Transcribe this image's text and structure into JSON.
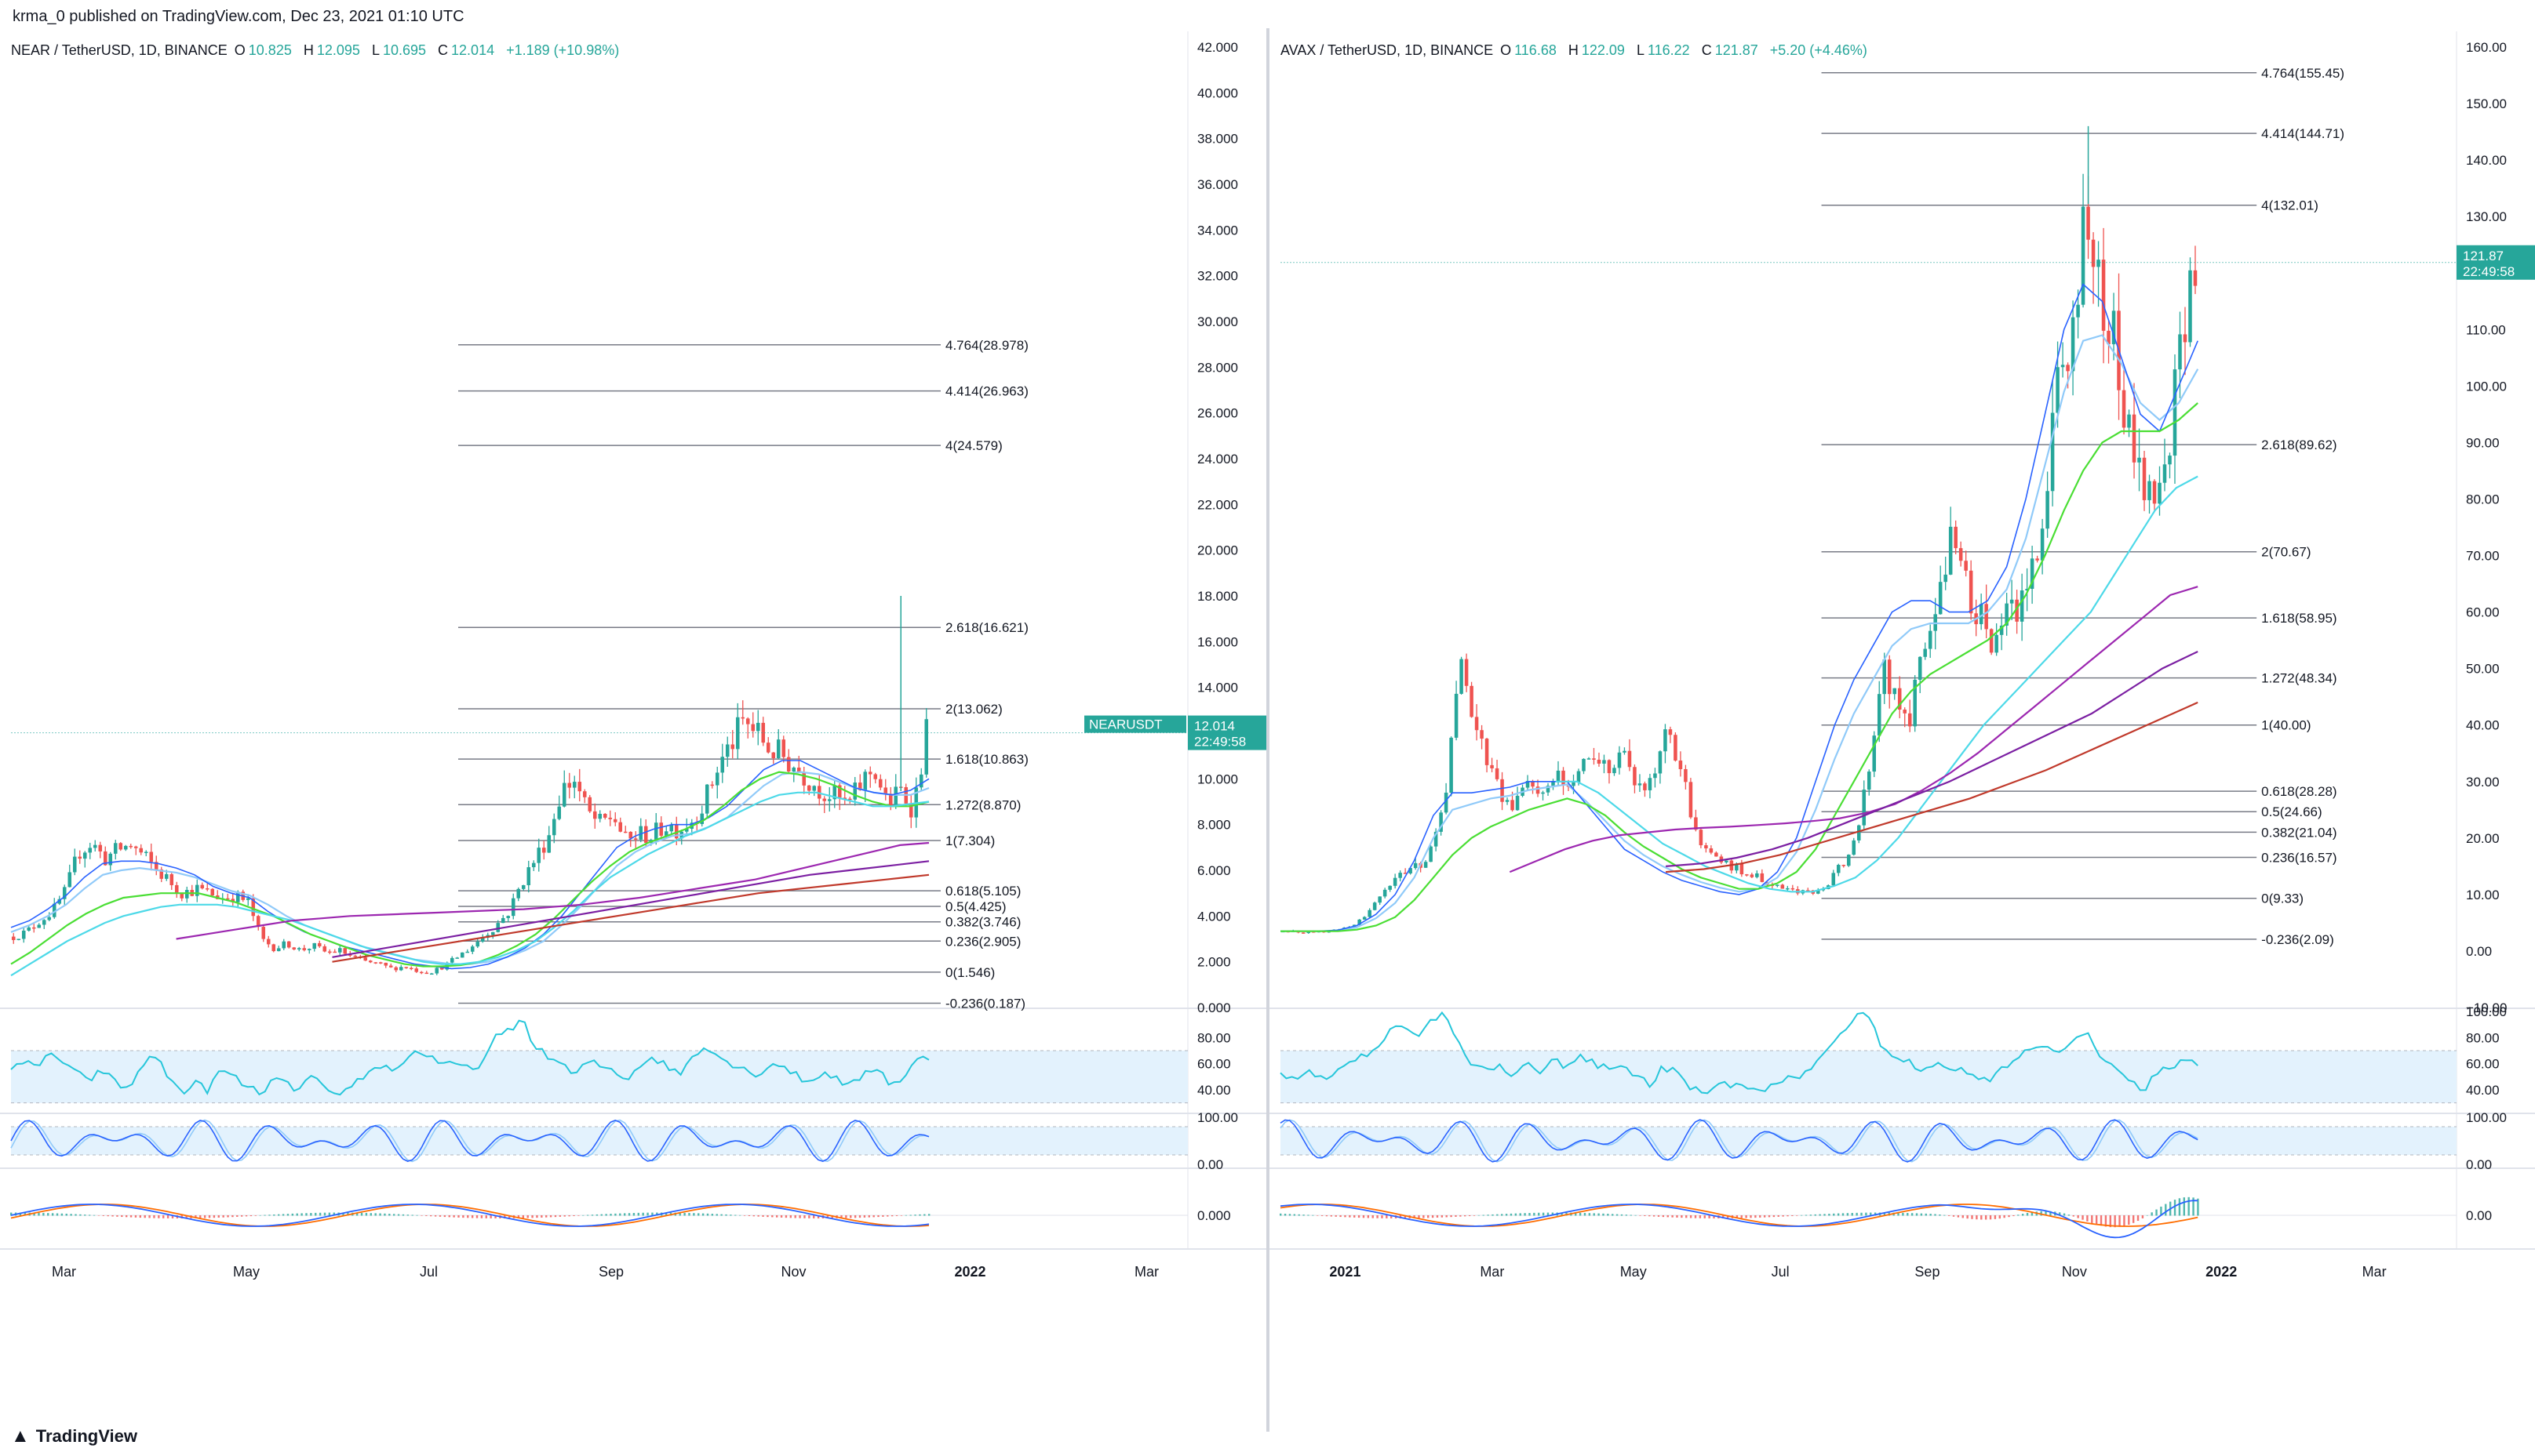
{
  "header": {
    "publisher_text": "krma_0 published on TradingView.com, Dec 23, 2021 01:10 UTC"
  },
  "footer": {
    "brand": "TradingView",
    "logo_icon": "tradingview-logo-icon"
  },
  "colors": {
    "up": "#26a69a",
    "down": "#ef5350",
    "ema_fast": "#2962ff",
    "ema_mid": "#90caf9",
    "sma_green": "#4ade34",
    "sma_cyan": "#4dd9e8",
    "sma_purple": "#9c27b0",
    "sma_violet": "#7b1fa2",
    "sma_red": "#c0392b",
    "fib_line": "#787b86",
    "rsi": "#26c6da",
    "rsi_band": "#e3f2fd",
    "stoch_k": "#2962ff",
    "stoch_d": "#90caf9",
    "macd": "#2962ff",
    "signal": "#ff6d00",
    "hist_up": "#26a69a",
    "hist_down": "#ef5350"
  },
  "chart_data": [
    {
      "type": "candlestick",
      "symbol": "NEAR / TetherUSD, 1D, BINANCE",
      "ohlc": {
        "open_label": "O",
        "open": "10.825",
        "high_label": "H",
        "high": "12.095",
        "low_label": "L",
        "low": "10.695",
        "close_label": "C",
        "close": "12.014",
        "change": "+1.189 (+10.98%)"
      },
      "last_price_tag": {
        "ticker": "NEARUSDT",
        "price": "12.014",
        "countdown": "22:49:58",
        "value": 12.014
      },
      "y_axis": {
        "min": 0,
        "max": 42,
        "ticks": [
          "42.000",
          "40.000",
          "38.000",
          "36.000",
          "34.000",
          "32.000",
          "30.000",
          "28.000",
          "26.000",
          "24.000",
          "22.000",
          "20.000",
          "18.000",
          "16.000",
          "14.000",
          "12.000",
          "10.000",
          "8.000",
          "6.000",
          "4.000",
          "2.000",
          "0.000"
        ],
        "tick_values": [
          42,
          40,
          38,
          36,
          34,
          32,
          30,
          28,
          26,
          24,
          22,
          20,
          18,
          16,
          14,
          12,
          10,
          8,
          6,
          4,
          2,
          0
        ]
      },
      "x_axis": {
        "labels": [
          "Mar",
          "May",
          "Jul",
          "Sep",
          "Nov",
          "2022",
          "Mar"
        ],
        "label_positions": [
          0.045,
          0.2,
          0.355,
          0.51,
          0.665,
          0.815,
          0.965
        ]
      },
      "fib_levels": [
        {
          "label": "4.764(28.978)",
          "value": 28.978
        },
        {
          "label": "4.414(26.963)",
          "value": 26.963
        },
        {
          "label": "4(24.579)",
          "value": 24.579
        },
        {
          "label": "2.618(16.621)",
          "value": 16.621
        },
        {
          "label": "2(13.062)",
          "value": 13.062
        },
        {
          "label": "1.618(10.863)",
          "value": 10.863
        },
        {
          "label": "1.272(8.870)",
          "value": 8.87
        },
        {
          "label": "1(7.304)",
          "value": 7.304
        },
        {
          "label": "0.618(5.105)",
          "value": 5.105
        },
        {
          "label": "0.5(4.425)",
          "value": 4.425
        },
        {
          "label": "0.382(3.746)",
          "value": 3.746
        },
        {
          "label": "0.236(2.905)",
          "value": 2.905
        },
        {
          "label": "0(1.546)",
          "value": 1.546
        },
        {
          "label": "-0.236(0.187)",
          "value": 0.187
        }
      ],
      "fib_x_range": [
        0.38,
        0.79
      ],
      "price_path": [
        3.1,
        3.3,
        3.8,
        4.2,
        5.1,
        6.8,
        7.2,
        6.5,
        6.9,
        7.1,
        6.6,
        6.0,
        5.5,
        5.0,
        5.2,
        5.0,
        4.8,
        4.9,
        4.6,
        3.0,
        2.6,
        2.8,
        2.5,
        2.7,
        2.4,
        2.5,
        2.2,
        2.0,
        1.9,
        1.7,
        1.8,
        1.6,
        1.55,
        1.8,
        2.2,
        2.6,
        3.1,
        3.6,
        4.2,
        5.5,
        6.5,
        7.5,
        9.5,
        10.0,
        8.5,
        8.0,
        8.4,
        7.2,
        7.6,
        7.5,
        8.0,
        7.8,
        8.2,
        9.0,
        10.5,
        11.5,
        12.5,
        12.0,
        11.3,
        11.0,
        10.5,
        10.0,
        9.5,
        9.2,
        8.8,
        9.8,
        10.5,
        8.8,
        9.5,
        8.7,
        12.014
      ],
      "spike": {
        "index": 68,
        "high": 18.0
      },
      "ema_fast": [
        3.5,
        3.8,
        4.3,
        4.9,
        5.7,
        6.3,
        6.4,
        6.4,
        6.3,
        6.1,
        5.8,
        5.3,
        5.0,
        4.8,
        4.2,
        3.7,
        3.3,
        3.0,
        2.7,
        2.5,
        2.3,
        2.1,
        1.9,
        1.8,
        1.7,
        1.75,
        1.9,
        2.2,
        2.6,
        3.2,
        4.0,
        5.0,
        6.0,
        7.0,
        7.5,
        7.8,
        8.0,
        8.0,
        8.3,
        8.8,
        9.6,
        10.4,
        10.8,
        10.8,
        10.4,
        10.0,
        9.6,
        9.4,
        9.3,
        9.5,
        10.0
      ],
      "ema_slow": [
        3.3,
        3.6,
        4.0,
        4.5,
        5.2,
        5.8,
        6.0,
        6.1,
        6.0,
        5.9,
        5.7,
        5.4,
        5.1,
        4.9,
        4.5,
        4.0,
        3.6,
        3.3,
        3.0,
        2.7,
        2.5,
        2.3,
        2.1,
        2.0,
        1.9,
        1.9,
        2.0,
        2.2,
        2.5,
        2.9,
        3.6,
        4.4,
        5.3,
        6.2,
        6.8,
        7.2,
        7.5,
        7.6,
        7.9,
        8.3,
        9.0,
        9.7,
        10.2,
        10.3,
        10.2,
        9.9,
        9.6,
        9.4,
        9.3,
        9.3,
        9.6
      ],
      "sma_green": [
        1.9,
        2.4,
        3.0,
        3.6,
        4.1,
        4.5,
        4.8,
        4.9,
        5.0,
        5.0,
        5.0,
        4.8,
        4.6,
        4.3,
        4.0,
        3.6,
        3.2,
        2.9,
        2.6,
        2.3,
        2.1,
        1.9,
        1.8,
        1.8,
        1.85,
        2.0,
        2.3,
        2.7,
        3.2,
        3.9,
        4.7,
        5.5,
        6.2,
        6.8,
        7.2,
        7.5,
        7.8,
        8.2,
        8.8,
        9.5,
        10.0,
        10.3,
        10.2,
        10.0,
        9.7,
        9.3,
        9.0,
        8.8,
        8.8,
        9.0
      ],
      "sma_cyan": [
        1.4,
        1.9,
        2.4,
        2.9,
        3.3,
        3.7,
        4.0,
        4.2,
        4.4,
        4.5,
        4.5,
        4.5,
        4.4,
        4.2,
        4.0,
        3.8,
        3.5,
        3.2,
        2.9,
        2.6,
        2.4,
        2.2,
        2.0,
        1.9,
        1.9,
        2.0,
        2.2,
        2.5,
        2.9,
        3.5,
        4.2,
        5.0,
        5.7,
        6.2,
        6.7,
        7.1,
        7.5,
        7.8,
        8.2,
        8.6,
        9.0,
        9.3,
        9.4,
        9.4,
        9.2,
        9.0,
        8.8,
        8.8,
        8.9,
        9.0
      ],
      "sma_purple": {
        "start": 0.18,
        "values": [
          3.0,
          3.2,
          3.4,
          3.6,
          3.8,
          3.9,
          4.0,
          4.05,
          4.1,
          4.15,
          4.2,
          4.25,
          4.3,
          4.4,
          4.5,
          4.65,
          4.8,
          5.0,
          5.2,
          5.4,
          5.6,
          5.9,
          6.2,
          6.5,
          6.8,
          7.1,
          7.2
        ]
      },
      "sma_violet": {
        "start": 0.35,
        "values": [
          2.2,
          2.5,
          2.8,
          3.1,
          3.4,
          3.7,
          4.0,
          4.3,
          4.6,
          4.9,
          5.2,
          5.5,
          5.8,
          6.0,
          6.2,
          6.4
        ]
      },
      "sma_red": {
        "start": 0.35,
        "values": [
          2.0,
          2.3,
          2.6,
          2.9,
          3.2,
          3.5,
          3.8,
          4.1,
          4.4,
          4.7,
          5.0,
          5.2,
          5.4,
          5.6,
          5.8
        ]
      },
      "rsi": {
        "ticks": [
          "80.00",
          "60.00",
          "40.00"
        ],
        "tick_values": [
          80,
          60,
          40
        ],
        "min": 25,
        "max": 100,
        "band": [
          30,
          70
        ],
        "values": [
          58,
          62,
          55,
          70,
          60,
          52,
          48,
          55,
          45,
          40,
          60,
          66,
          50,
          38,
          45,
          40,
          55,
          50,
          42,
          37,
          48,
          44,
          40,
          52,
          38,
          33,
          45,
          50,
          60,
          55,
          62,
          70,
          66,
          58,
          60,
          55,
          62,
          80,
          85,
          95,
          72,
          65,
          60,
          50,
          62,
          58,
          55,
          48,
          60,
          65,
          58,
          52,
          66,
          75,
          65,
          60,
          55,
          52,
          60,
          58,
          50,
          45,
          55,
          48,
          42,
          52,
          58,
          45,
          48,
          62,
          65
        ]
      },
      "stoch": {
        "ticks": [
          "100.00",
          "0.00"
        ],
        "tick_values": [
          100,
          0
        ],
        "band": [
          20,
          80
        ]
      },
      "macd": {
        "ticks": [
          "0.000"
        ],
        "tick_values": [
          0
        ]
      }
    },
    {
      "type": "candlestick",
      "symbol": "AVAX / TetherUSD, 1D, BINANCE",
      "ohlc": {
        "open_label": "O",
        "open": "116.68",
        "high_label": "H",
        "high": "122.09",
        "low_label": "L",
        "low": "116.22",
        "close_label": "C",
        "close": "121.87",
        "change": "+5.20 (+4.46%)"
      },
      "last_price_tag": {
        "ticker": "",
        "price": "121.87",
        "countdown": "22:49:58",
        "value": 121.87
      },
      "y_axis": {
        "min": -10,
        "max": 160,
        "ticks": [
          "160.00",
          "150.00",
          "140.00",
          "130.00",
          "120.00",
          "110.00",
          "100.00",
          "90.00",
          "80.00",
          "70.00",
          "60.00",
          "50.00",
          "40.00",
          "30.00",
          "20.00",
          "10.00",
          "0.00",
          "−10.00"
        ],
        "tick_values": [
          160,
          150,
          140,
          130,
          120,
          110,
          100,
          90,
          80,
          70,
          60,
          50,
          40,
          30,
          20,
          10,
          0,
          -10
        ]
      },
      "x_axis": {
        "labels": [
          "2021",
          "Mar",
          "May",
          "Jul",
          "Sep",
          "Nov",
          "2022",
          "Mar"
        ],
        "label_positions": [
          0.055,
          0.18,
          0.3,
          0.425,
          0.55,
          0.675,
          0.8,
          0.93
        ]
      },
      "fib_levels": [
        {
          "label": "4.764(155.45)",
          "value": 155.45
        },
        {
          "label": "4.414(144.71)",
          "value": 144.71
        },
        {
          "label": "4(132.01)",
          "value": 132.01
        },
        {
          "label": "2.618(89.62)",
          "value": 89.62
        },
        {
          "label": "2(70.67)",
          "value": 70.67
        },
        {
          "label": "1.618(58.95)",
          "value": 58.95
        },
        {
          "label": "1.272(48.34)",
          "value": 48.34
        },
        {
          "label": "1(40.00)",
          "value": 40.0
        },
        {
          "label": "0.618(28.28)",
          "value": 28.28
        },
        {
          "label": "0.5(24.66)",
          "value": 24.66
        },
        {
          "label": "0.382(21.04)",
          "value": 21.04
        },
        {
          "label": "0.236(16.57)",
          "value": 16.57
        },
        {
          "label": "0(9.33)",
          "value": 9.33
        },
        {
          "label": "-0.236(2.09)",
          "value": 2.09
        }
      ],
      "fib_x_range": [
        0.46,
        0.83
      ],
      "price_path": [
        3.5,
        3.4,
        3.3,
        3.5,
        3.8,
        4.5,
        6.0,
        9.0,
        12.0,
        14.0,
        15.0,
        18.0,
        28.0,
        55.0,
        40.0,
        33.0,
        28.0,
        26.0,
        30.0,
        27.0,
        31.0,
        28.0,
        33.0,
        35.0,
        32.0,
        36.0,
        28.0,
        30.0,
        38.0,
        34.0,
        24.0,
        18.0,
        16.0,
        15.0,
        14.0,
        13.0,
        12.0,
        11.0,
        10.5,
        10.0,
        12.0,
        15.0,
        20.0,
        32.0,
        52.0,
        44.0,
        40.0,
        55.0,
        60.0,
        75.0,
        66.0,
        60.0,
        55.0,
        58.0,
        62.0,
        68.0,
        80.0,
        100.0,
        110.0,
        135.0,
        115.0,
        108.0,
        95.0,
        85.0,
        80.0,
        90.0,
        110.0,
        121.87
      ],
      "spike": {
        "index": 59,
        "high": 146.0
      },
      "ema_fast": [
        3.5,
        3.5,
        3.5,
        3.7,
        4.5,
        6.5,
        10.0,
        16.0,
        24.0,
        28.0,
        28.0,
        28.5,
        29.0,
        30.0,
        30.0,
        30.0,
        26.0,
        22.0,
        18.0,
        16.0,
        14.0,
        12.5,
        11.5,
        10.5,
        10.0,
        11.0,
        14.0,
        20.0,
        30.0,
        40.0,
        48.0,
        54.0,
        60.0,
        62.0,
        62.0,
        60.0,
        60.0,
        62.0,
        68.0,
        80.0,
        95.0,
        110.0,
        118.0,
        115.0,
        105.0,
        95.0,
        92.0,
        100.0,
        108.0
      ],
      "ema_slow": [
        3.5,
        3.5,
        3.5,
        3.6,
        4.2,
        5.8,
        8.5,
        13.0,
        20.0,
        25.0,
        26.0,
        27.0,
        27.5,
        28.5,
        29.0,
        29.5,
        26.5,
        23.0,
        19.5,
        17.0,
        15.0,
        13.5,
        12.2,
        11.2,
        10.5,
        11.0,
        13.0,
        17.5,
        25.0,
        34.0,
        42.0,
        48.0,
        54.0,
        57.0,
        58.0,
        58.0,
        58.0,
        60.0,
        64.0,
        73.0,
        86.0,
        99.0,
        108.0,
        109.0,
        104.0,
        97.0,
        94.0,
        97.0,
        103.0
      ],
      "sma_green": [
        3.5,
        3.5,
        3.5,
        3.5,
        3.8,
        4.5,
        6.0,
        9.0,
        13.0,
        17.0,
        20.0,
        22.0,
        23.5,
        25.0,
        26.0,
        27.0,
        26.0,
        24.0,
        21.0,
        18.5,
        16.5,
        14.5,
        13.0,
        12.0,
        11.0,
        11.0,
        12.0,
        14.0,
        18.0,
        24.0,
        30.0,
        36.0,
        42.0,
        46.0,
        49.0,
        51.0,
        53.0,
        55.0,
        58.0,
        63.0,
        70.0,
        78.0,
        85.0,
        90.0,
        92.0,
        92.0,
        92.0,
        94.0,
        97.0
      ],
      "sma_cyan": {
        "start": 0.3,
        "values": [
          30.0,
          30.0,
          28.0,
          25.0,
          22.0,
          19.0,
          17.0,
          15.0,
          13.5,
          12.0,
          11.0,
          10.5,
          10.5,
          11.5,
          13.0,
          16.0,
          20.0,
          25.0,
          30.0,
          35.0,
          40.0,
          44.0,
          48.0,
          52.0,
          56.0,
          60.0,
          66.0,
          72.0,
          78.0,
          82.0,
          84.0
        ]
      },
      "sma_purple": {
        "start": 0.25,
        "values": [
          14.0,
          16.0,
          18.0,
          19.5,
          20.5,
          21.0,
          21.5,
          21.8,
          22.0,
          22.3,
          22.6,
          23.0,
          23.5,
          24.5,
          26.0,
          28.5,
          31.5,
          35.0,
          39.0,
          43.0,
          47.0,
          51.0,
          55.0,
          59.0,
          63.0,
          64.5
        ]
      },
      "sma_violet": {
        "start": 0.42,
        "values": [
          15.0,
          15.5,
          16.5,
          18.0,
          20.0,
          22.5,
          25.0,
          27.5,
          30.0,
          33.0,
          36.0,
          39.0,
          42.0,
          46.0,
          50.0,
          53.0
        ]
      },
      "sma_red": {
        "start": 0.42,
        "values": [
          14.0,
          14.5,
          15.5,
          17.0,
          19.0,
          21.0,
          23.0,
          25.0,
          27.0,
          29.5,
          32.0,
          35.0,
          38.0,
          41.0,
          44.0
        ]
      },
      "rsi": {
        "ticks": [
          "100.00",
          "80.00",
          "60.00",
          "40.00"
        ],
        "tick_values": [
          100,
          80,
          60,
          40
        ],
        "min": 25,
        "max": 100,
        "band": [
          30,
          70
        ],
        "values": [
          52,
          50,
          54,
          48,
          55,
          60,
          65,
          72,
          85,
          90,
          80,
          92,
          98,
          75,
          60,
          55,
          58,
          52,
          60,
          55,
          62,
          58,
          65,
          60,
          55,
          62,
          50,
          45,
          58,
          52,
          40,
          38,
          42,
          45,
          40,
          38,
          42,
          48,
          52,
          60,
          72,
          85,
          95,
          98,
          70,
          65,
          60,
          55,
          62,
          58,
          55,
          50,
          48,
          58,
          65,
          72,
          75,
          70,
          80,
          82,
          65,
          55,
          45,
          40,
          52,
          58,
          62,
          60
        ]
      },
      "stoch": {
        "ticks": [
          "100.00",
          "0.00"
        ],
        "tick_values": [
          100,
          0
        ],
        "band": [
          20,
          80
        ]
      },
      "macd": {
        "ticks": [
          "0.00"
        ],
        "tick_values": [
          0
        ]
      }
    }
  ]
}
